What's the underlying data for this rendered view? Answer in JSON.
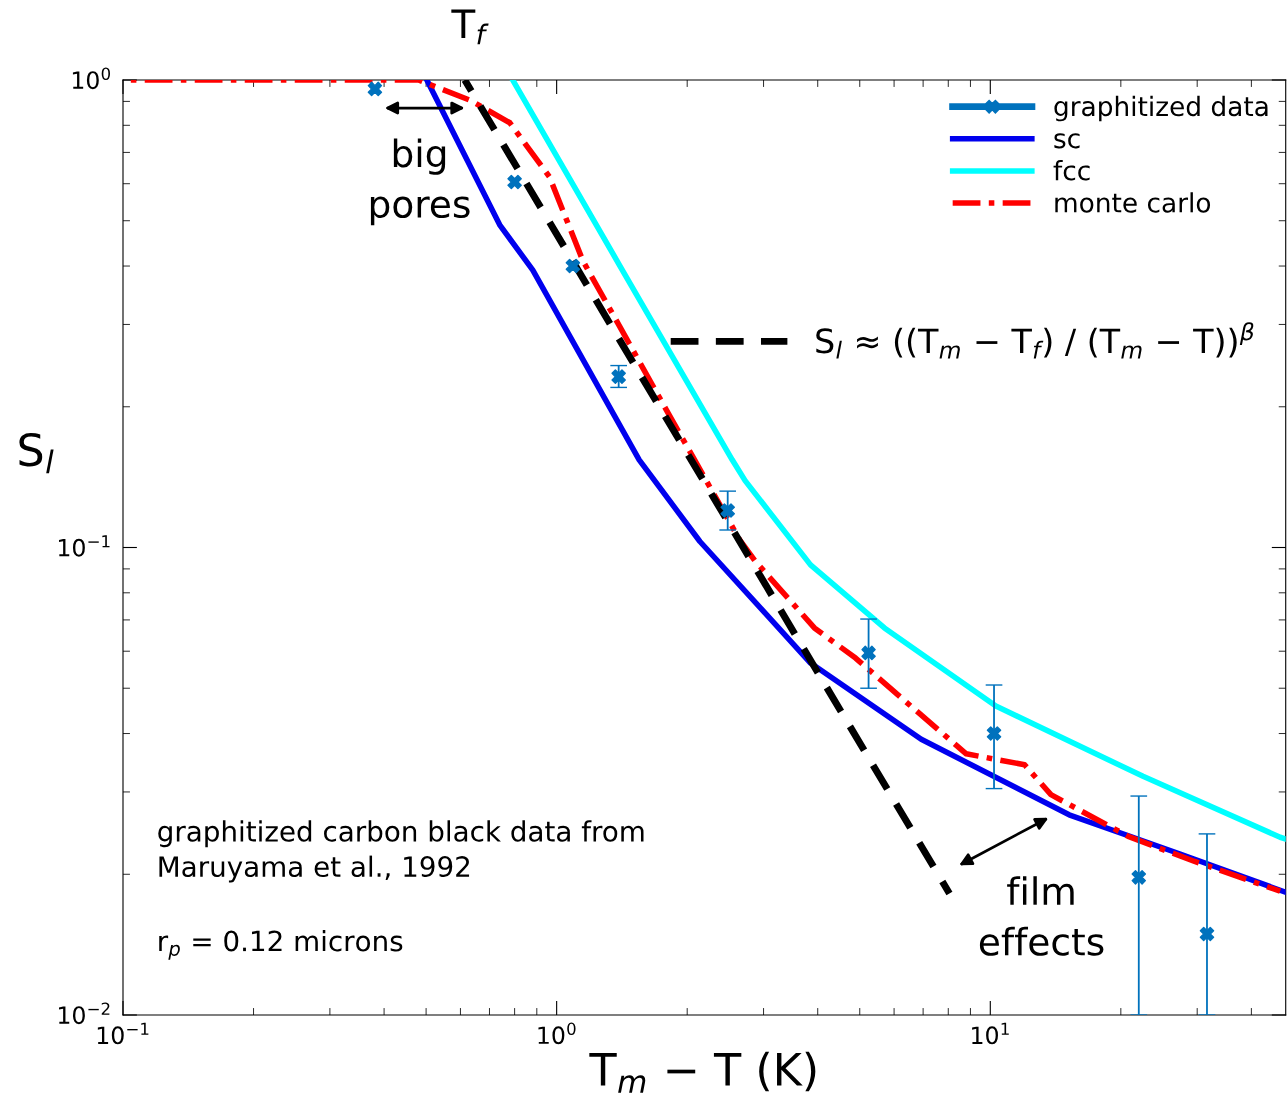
{
  "chart_data": {
    "type": "line",
    "log": "xy",
    "grid": false,
    "legend": "top right",
    "xlabel": "T$_{m}$ − T (K)",
    "ylabel": "S$_{l}$",
    "xlim": [
      0.1,
      48
    ],
    "ylim": [
      0.01,
      1
    ],
    "xticks": [
      {
        "value": 0.1,
        "label": "10$^{−1}$"
      },
      {
        "value": 1,
        "label": "10$^{0}$"
      },
      {
        "value": 10,
        "label": "10$^{1}$"
      }
    ],
    "yticks": [
      {
        "value": 0.01,
        "label": "10$^{−2}$"
      },
      {
        "value": 0.1,
        "label": "10$^{−1}$"
      },
      {
        "value": 1,
        "label": "10$^{0}$"
      }
    ],
    "series": [
      {
        "name": "graphitized data",
        "type": "scatter",
        "marker": "cross",
        "color": "#0072bd",
        "x": [
          0.381,
          0.8,
          1.09,
          1.39,
          2.48,
          5.24,
          10.2,
          22.0,
          31.6
        ],
        "values": [
          0.957,
          0.605,
          0.4,
          0.232,
          0.12,
          0.0595,
          0.04,
          0.0197,
          0.0149
        ],
        "errors": [
          null,
          null,
          null,
          [
            0.22,
            0.245
          ],
          [
            0.109,
            0.132
          ],
          [
            0.05,
            0.0703
          ],
          [
            0.0305,
            0.0508
          ],
          [
            0.01,
            0.0294
          ],
          [
            0.01,
            0.0244
          ]
        ]
      },
      {
        "name": "sc",
        "line_style": "solid",
        "color": "#0000ee",
        "x": [
          0.502,
          0.739,
          0.881,
          1.55,
          2.14,
          3.85,
          6.93,
          15.2,
          27.4,
          48
        ],
        "values": [
          1.0,
          0.49,
          0.392,
          0.154,
          0.103,
          0.0566,
          0.0389,
          0.0268,
          0.0221,
          0.0183
        ]
      },
      {
        "name": "fcc",
        "line_style": "solid",
        "color": "#00ffff",
        "x": [
          0.792,
          1.4,
          2.54,
          2.72,
          3.85,
          5.7,
          10.3,
          22.5,
          46.6,
          48
        ],
        "values": [
          1.0,
          0.4,
          0.154,
          0.139,
          0.0918,
          0.0673,
          0.0458,
          0.0324,
          0.024,
          0.0238
        ]
      },
      {
        "name": "monte carlo",
        "line_style": "dashdot",
        "color": "#ff0000",
        "x": [
          0.1,
          0.48,
          0.63,
          0.78,
          0.963,
          1.15,
          1.37,
          1.79,
          2.64,
          2.87,
          3.93,
          4.89,
          6.4,
          8.8,
          12.0,
          13.8,
          20.8,
          29.6,
          46.6
        ],
        "values": [
          1.0,
          1.0,
          0.906,
          0.81,
          0.62,
          0.41,
          0.307,
          0.197,
          0.104,
          0.0935,
          0.0673,
          0.058,
          0.0467,
          0.0362,
          0.0343,
          0.0296,
          0.0241,
          0.0213,
          0.0184
        ]
      },
      {
        "name": "S$_{l}$ ≈ ((T$_{m}$ − T$_{f}$) / (T$_{m}$ − T))$^{β}$",
        "line_style": "dashed",
        "color": "#000000",
        "x": [
          0.614,
          8.05
        ],
        "values": [
          1.0,
          0.0182
        ]
      }
    ],
    "annotations": [
      {
        "text": "T$_{f}$",
        "x": 0.614,
        "y": 1.0
      },
      "big\npores",
      "film\neffects",
      "graphitized carbon black data from\nMaruyama et al., 1992",
      "r$_{p}$ = 0.12 microns"
    ]
  }
}
